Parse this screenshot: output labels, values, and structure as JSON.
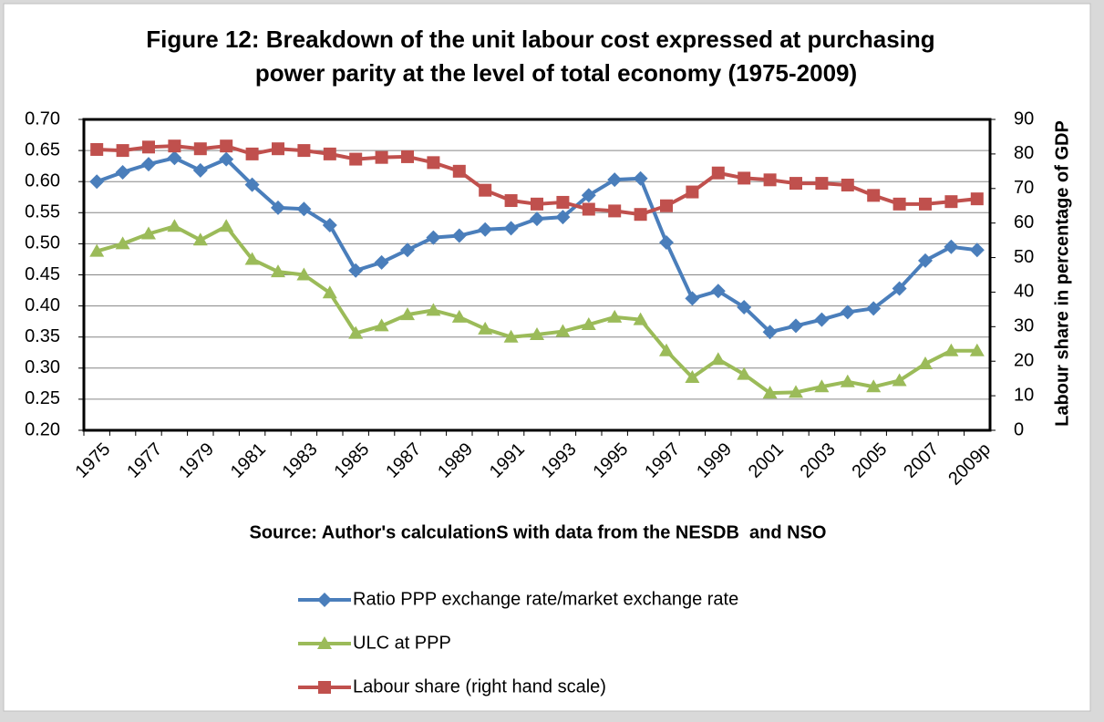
{
  "chart_data": {
    "type": "line",
    "title": [
      "Figure 12: Breakdown of the unit labour cost expressed at purchasing",
      "power parity at the level of total economy (1975-2009)"
    ],
    "source": "Source: Author's calculationS with data from the NESDB  and NSO",
    "y2_label": "Labour share in percentage of GDP",
    "categories": [
      "1975",
      null,
      "1977",
      null,
      "1979",
      null,
      "1981",
      null,
      "1983",
      null,
      "1985",
      null,
      "1987",
      null,
      "1989",
      null,
      "1991",
      null,
      "1993",
      null,
      "1995",
      null,
      "1997",
      null,
      "1999",
      null,
      "2001",
      null,
      "2003",
      null,
      "2005",
      null,
      "2007",
      null,
      "2009p"
    ],
    "ylim": [
      0.2,
      0.7
    ],
    "yticks": [
      {
        "value": 0.2,
        "label": "0.20"
      },
      0.25,
      {
        "value": 0.3,
        "label": "0.30"
      },
      0.35,
      {
        "value": 0.4,
        "label": "0.40"
      },
      0.45,
      {
        "value": 0.5,
        "label": "0.50"
      },
      0.55,
      {
        "value": 0.6,
        "label": "0.60"
      },
      0.65,
      {
        "value": 0.7,
        "label": "0.70"
      }
    ],
    "y2lim": [
      0,
      90
    ],
    "y2ticks": [
      0,
      10,
      20,
      30,
      40,
      50,
      60,
      70,
      80,
      90
    ],
    "grid": true,
    "series": [
      {
        "name": "Ratio PPP exchange rate/market exchange rate",
        "color": "#4a7ebb",
        "marker": "diamond",
        "values": [
          0.6,
          0.615,
          0.628,
          0.638,
          0.618,
          0.636,
          0.595,
          0.558,
          0.556,
          0.53,
          0.457,
          0.47,
          0.49,
          0.51,
          0.513,
          0.523,
          0.525,
          0.54,
          0.543,
          0.578,
          0.603,
          0.605,
          0.502,
          0.412,
          0.424,
          0.398,
          0.358,
          0.368,
          0.378,
          0.39,
          0.396,
          0.428,
          0.473,
          0.495,
          0.49
        ]
      },
      {
        "name": "ULC at PPP",
        "color": "#9bbb59",
        "marker": "triangle",
        "values": [
          0.488,
          0.5,
          0.516,
          0.528,
          0.506,
          0.528,
          0.475,
          0.455,
          0.45,
          0.421,
          0.356,
          0.368,
          0.386,
          0.393,
          0.382,
          0.363,
          0.35,
          0.354,
          0.359,
          0.37,
          0.382,
          0.378,
          0.328,
          0.285,
          0.314,
          0.29,
          0.26,
          0.261,
          0.27,
          0.278,
          0.27,
          0.28,
          0.307,
          0.328,
          0.328
        ]
      },
      {
        "name": "Labour share (right hand scale)",
        "color": "#c0504d",
        "marker": "square",
        "axis": "y2",
        "values": [
          81.3,
          81,
          82,
          82.3,
          81.5,
          82.3,
          80,
          81.5,
          81,
          80,
          78.5,
          79,
          79.2,
          77.5,
          75,
          69.5,
          66.5,
          65.5,
          66,
          64,
          63.5,
          62.5,
          65,
          69,
          74.5,
          73,
          72.5,
          71.5,
          71.5,
          71,
          68,
          65.5,
          65.5,
          66.2,
          67
        ]
      }
    ]
  }
}
